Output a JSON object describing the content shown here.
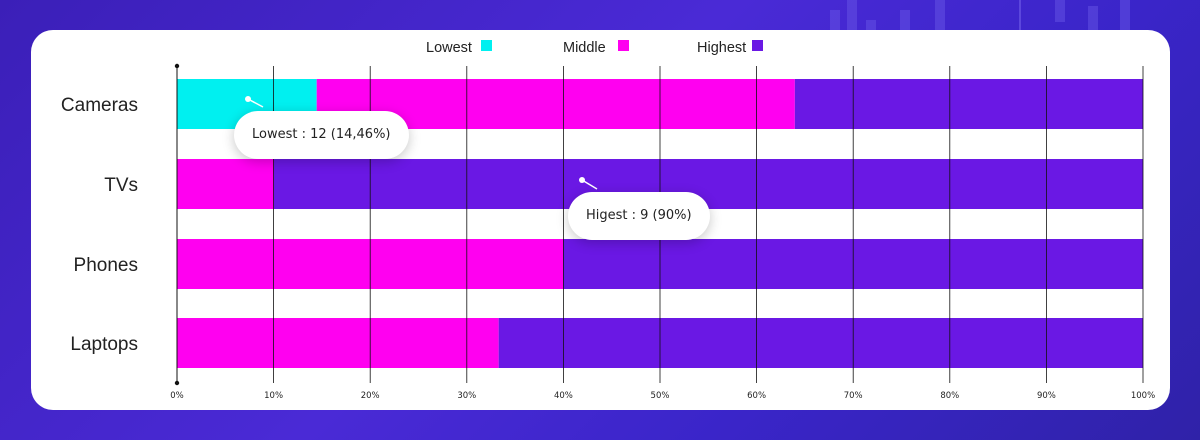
{
  "chart_data": {
    "type": "bar",
    "orientation": "horizontal",
    "stacked": true,
    "normalized": true,
    "categories": [
      "Cameras",
      "TVs",
      "Phones",
      "Laptops"
    ],
    "series": [
      {
        "name": "Lowest",
        "color": "#00f0f0",
        "values": [
          14.46,
          0,
          0,
          0
        ]
      },
      {
        "name": "Middle",
        "color": "#ff00f0",
        "values": [
          49.5,
          10,
          40,
          33.3
        ]
      },
      {
        "name": "Highest",
        "color": "#6a18e4",
        "values": [
          36.04,
          90,
          60,
          66.7
        ]
      }
    ],
    "xlim": [
      0,
      100
    ],
    "xticks": [
      "0%",
      "10%",
      "20%",
      "30%",
      "40%",
      "50%",
      "60%",
      "70%",
      "80%",
      "90%",
      "100%"
    ],
    "grid": true,
    "legend_position": "top-center",
    "annotations": [
      {
        "text": "Lowest : 12 (14,46%)",
        "category": "Cameras",
        "series": "Lowest"
      },
      {
        "text": "Higest : 9 (90%)",
        "category": "TVs",
        "series": "Highest"
      }
    ]
  },
  "colors": {
    "background": "#3b1fb8",
    "card": "#ffffff"
  }
}
